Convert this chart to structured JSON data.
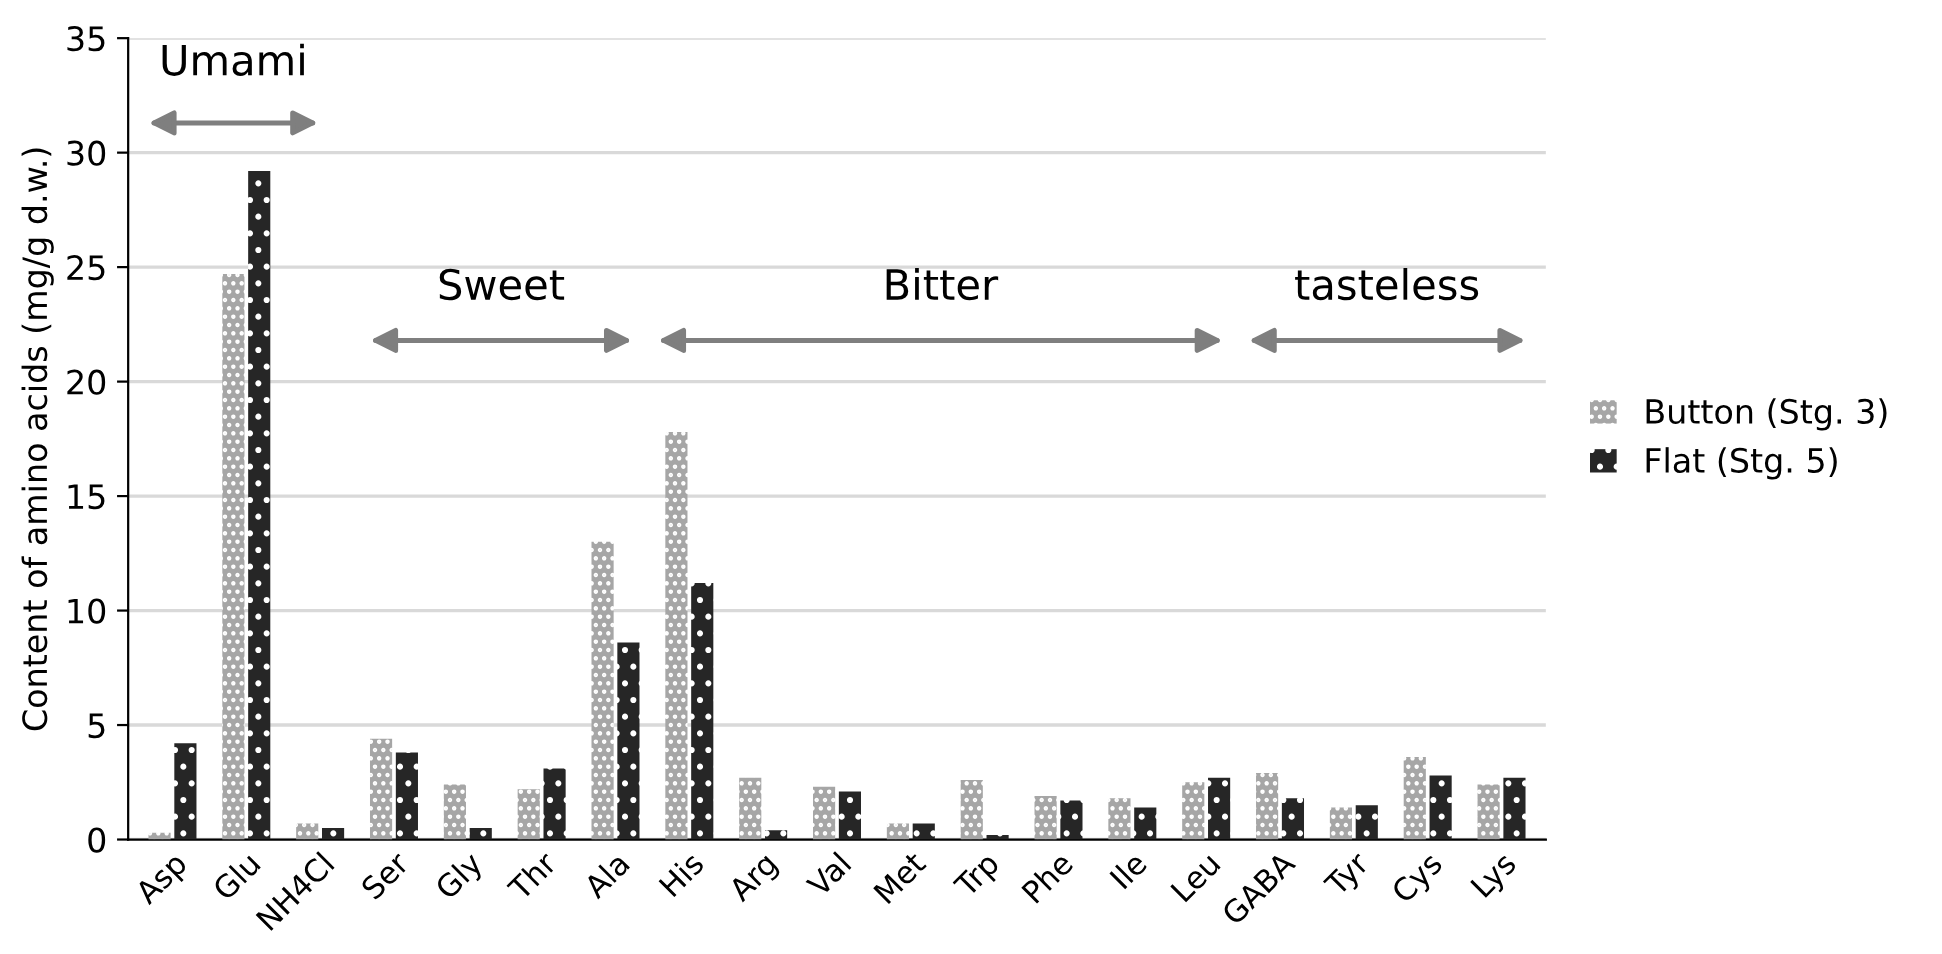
{
  "chart_data": {
    "type": "bar",
    "ylabel": "Content of amino acids (mg/g d.w.)",
    "categories": [
      "Asp",
      "Glu",
      "NH4Cl",
      "Ser",
      "Gly",
      "Thr",
      "Ala",
      "His",
      "Arg",
      "Val",
      "Met",
      "Trp",
      "Phe",
      "Ile",
      "Leu",
      "GABA",
      "Tyr",
      "Cys",
      "Lys"
    ],
    "series": [
      {
        "name": "Button (Stg. 3)",
        "color": "#a6a6a6",
        "values": [
          0.3,
          24.7,
          0.7,
          4.4,
          2.4,
          2.2,
          13.0,
          17.8,
          2.7,
          2.3,
          0.7,
          2.6,
          1.9,
          1.8,
          2.5,
          2.9,
          1.4,
          3.6,
          2.4
        ]
      },
      {
        "name": "Flat (Stg. 5)",
        "color": "#262626",
        "values": [
          4.2,
          29.2,
          0.5,
          3.8,
          0.5,
          3.1,
          8.6,
          11.2,
          0.4,
          2.1,
          0.7,
          0.2,
          1.7,
          1.4,
          2.7,
          1.8,
          1.5,
          2.8,
          2.7
        ]
      }
    ],
    "annotations": [
      "Umami",
      "Sweet",
      "Bitter",
      "tasteless"
    ],
    "ylim": [
      0,
      35
    ],
    "yticks": [
      0,
      5,
      10,
      15,
      20,
      25,
      30,
      35
    ],
    "grid": "y",
    "legend": "right"
  }
}
